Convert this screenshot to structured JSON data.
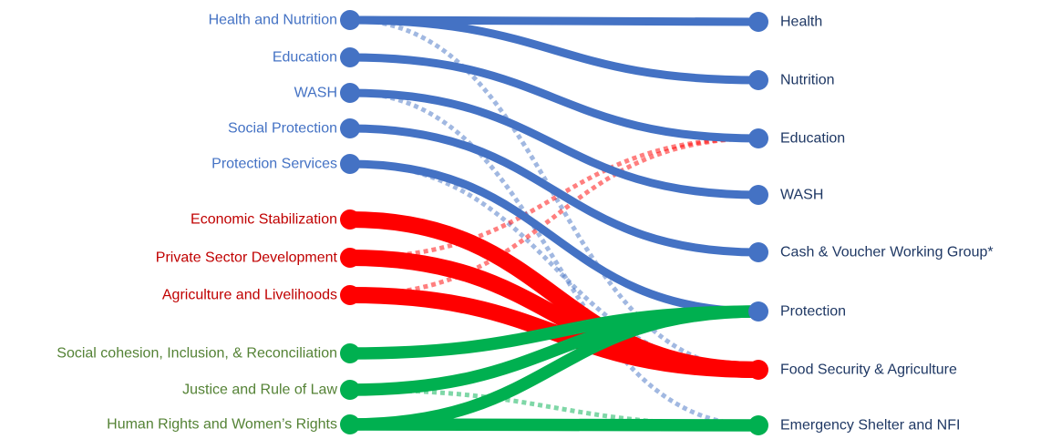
{
  "colors": {
    "blue": "#4472c4",
    "red": "#ff0000",
    "green": "#00b050",
    "label_blue": "#4472c4",
    "label_red": "#c00000",
    "label_green": "#548235",
    "label_right": "#1f3864"
  },
  "left_nodes": [
    {
      "id": "health-nutrition",
      "label": "Health and Nutrition",
      "group": "blue"
    },
    {
      "id": "education",
      "label": "Education",
      "group": "blue"
    },
    {
      "id": "wash",
      "label": "WASH",
      "group": "blue"
    },
    {
      "id": "social-protection",
      "label": "Social Protection",
      "group": "blue"
    },
    {
      "id": "protection-services",
      "label": "Protection Services",
      "group": "blue"
    },
    {
      "id": "economic-stabilization",
      "label": "Economic Stabilization",
      "group": "red"
    },
    {
      "id": "private-sector",
      "label": "Private Sector Development",
      "group": "red"
    },
    {
      "id": "agriculture-livelihoods",
      "label": "Agriculture and Livelihoods",
      "group": "red"
    },
    {
      "id": "social-cohesion",
      "label": "Social cohesion, Inclusion, & Reconciliation",
      "group": "green"
    },
    {
      "id": "justice",
      "label": "Justice and Rule of Law",
      "group": "green"
    },
    {
      "id": "human-rights",
      "label": "Human Rights and Women’s Rights",
      "group": "green"
    }
  ],
  "right_nodes": [
    {
      "id": "health",
      "label": "Health",
      "group": "blue"
    },
    {
      "id": "nutrition",
      "label": "Nutrition",
      "group": "blue"
    },
    {
      "id": "education-r",
      "label": "Education",
      "group": "blue"
    },
    {
      "id": "wash-r",
      "label": "WASH",
      "group": "blue"
    },
    {
      "id": "cash-voucher",
      "label": "Cash & Voucher Working Group*",
      "group": "blue"
    },
    {
      "id": "protection",
      "label": "Protection",
      "group": "blue"
    },
    {
      "id": "food-security",
      "label": "Food Security & Agriculture",
      "group": "red"
    },
    {
      "id": "emergency-shelter",
      "label": "Emergency Shelter and NFI",
      "group": "green"
    }
  ],
  "links": [
    {
      "from": "health-nutrition",
      "to": "health",
      "style": "solid",
      "color": "blue",
      "weight": 1
    },
    {
      "from": "health-nutrition",
      "to": "nutrition",
      "style": "solid",
      "color": "blue",
      "weight": 1
    },
    {
      "from": "education",
      "to": "education-r",
      "style": "solid",
      "color": "blue",
      "weight": 1
    },
    {
      "from": "wash",
      "to": "wash-r",
      "style": "solid",
      "color": "blue",
      "weight": 1
    },
    {
      "from": "social-protection",
      "to": "cash-voucher",
      "style": "solid",
      "color": "blue",
      "weight": 1
    },
    {
      "from": "protection-services",
      "to": "protection",
      "style": "solid",
      "color": "blue",
      "weight": 1
    },
    {
      "from": "health-nutrition",
      "to": "food-security",
      "style": "dotted",
      "color": "blue",
      "weight": 1
    },
    {
      "from": "wash",
      "to": "emergency-shelter",
      "style": "dotted",
      "color": "blue",
      "weight": 1
    },
    {
      "from": "protection-services",
      "to": "food-security",
      "style": "dotted",
      "color": "blue",
      "weight": 1
    },
    {
      "from": "economic-stabilization",
      "to": "food-security",
      "style": "solid",
      "color": "red",
      "weight": 2
    },
    {
      "from": "private-sector",
      "to": "food-security",
      "style": "solid",
      "color": "red",
      "weight": 2
    },
    {
      "from": "agriculture-livelihoods",
      "to": "food-security",
      "style": "solid",
      "color": "red",
      "weight": 2
    },
    {
      "from": "private-sector",
      "to": "education-r",
      "style": "dotted",
      "color": "red",
      "weight": 1
    },
    {
      "from": "agriculture-livelihoods",
      "to": "education-r",
      "style": "dotted",
      "color": "red",
      "weight": 1
    },
    {
      "from": "social-cohesion",
      "to": "protection",
      "style": "solid",
      "color": "green",
      "weight": 1.5
    },
    {
      "from": "justice",
      "to": "protection",
      "style": "solid",
      "color": "green",
      "weight": 1.5
    },
    {
      "from": "human-rights",
      "to": "protection",
      "style": "solid",
      "color": "green",
      "weight": 1.5
    },
    {
      "from": "human-rights",
      "to": "emergency-shelter",
      "style": "solid",
      "color": "green",
      "weight": 1.5
    },
    {
      "from": "justice",
      "to": "emergency-shelter",
      "style": "dotted",
      "color": "green",
      "weight": 1
    }
  ]
}
